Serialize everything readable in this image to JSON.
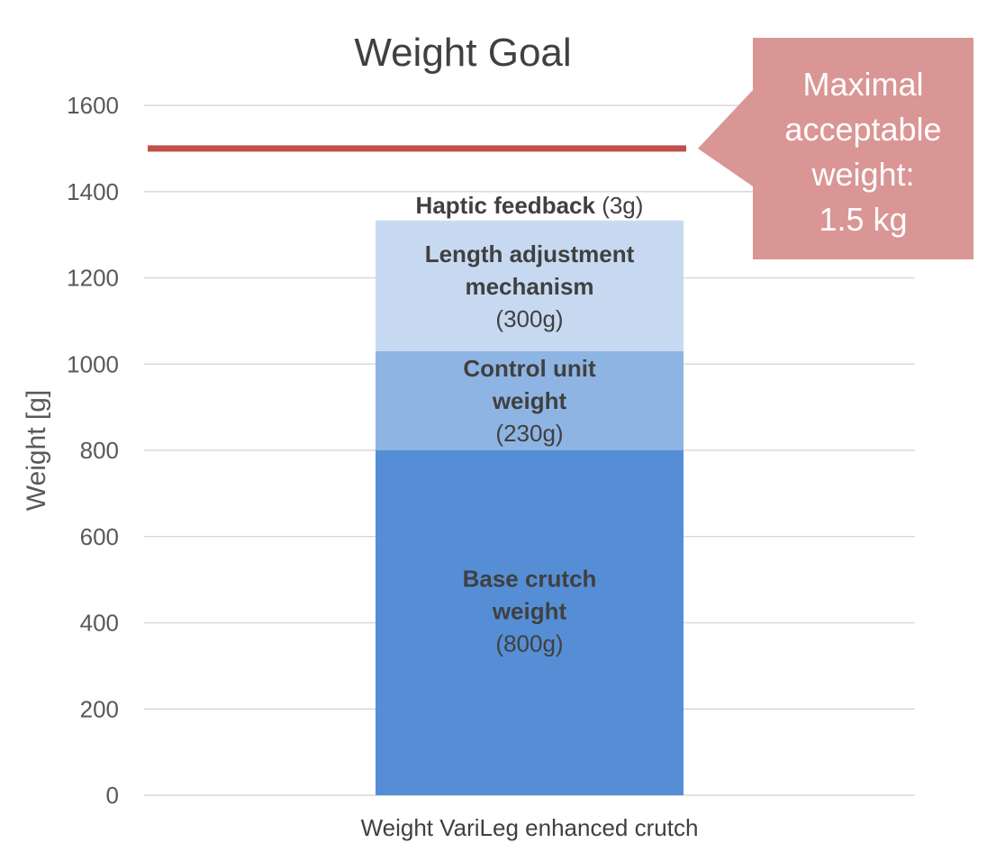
{
  "chart_data": {
    "type": "bar",
    "stacked": true,
    "title": "Weight Goal",
    "ylabel": "Weight [g]",
    "xlabel": "",
    "categories": [
      "Weight VariLeg enhanced crutch"
    ],
    "ylim": [
      0,
      1600
    ],
    "yticks": [
      0,
      200,
      400,
      600,
      800,
      1000,
      1200,
      1400,
      1600
    ],
    "grid": true,
    "series": [
      {
        "name": "Base crutch weight",
        "values": [
          800
        ],
        "color": "#558ed5",
        "label_lines": [
          "Base crutch",
          "weight"
        ],
        "value_label": "(800g)"
      },
      {
        "name": "Control unit weight",
        "values": [
          230
        ],
        "color": "#8eb4e3",
        "label_lines": [
          "Control unit",
          "weight"
        ],
        "value_label": "(230g)"
      },
      {
        "name": "Length adjustment mechanism",
        "values": [
          300
        ],
        "color": "#c6d9f1",
        "label_lines": [
          "Length adjustment",
          "mechanism"
        ],
        "value_label": "(300g)"
      },
      {
        "name": "Haptic feedback",
        "values": [
          3
        ],
        "color": "#c6d9f1",
        "label_lines": [
          "Haptic feedback"
        ],
        "value_label": "(3g)"
      }
    ],
    "reference_line": {
      "value": 1500,
      "color": "#c0504d"
    },
    "annotation": {
      "lines": [
        "Maximal",
        "acceptable",
        "weight:",
        "1.5 kg"
      ],
      "color": "#d99694"
    }
  }
}
